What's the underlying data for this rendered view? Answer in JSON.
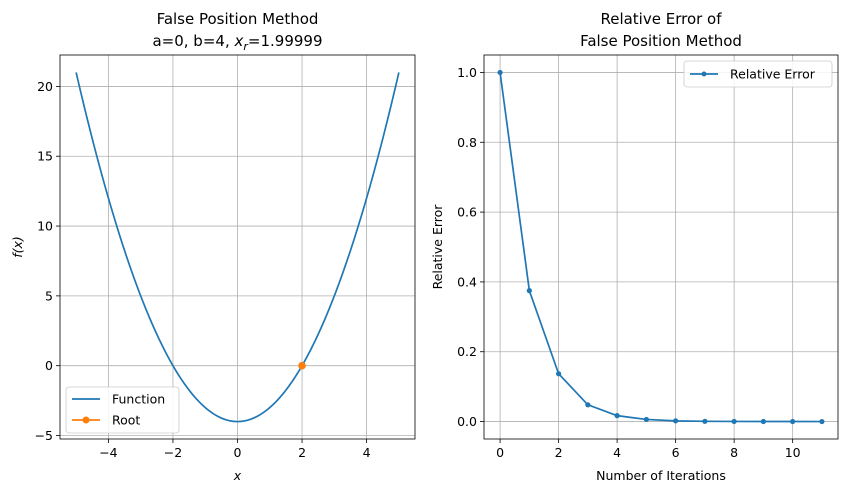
{
  "chart_data": [
    {
      "type": "line",
      "title_line1": "False Position Method",
      "title_line2_prefix": "a=0, b=4, ",
      "title_line2_var": "x",
      "title_line2_sub": "r",
      "title_line2_suffix": "=1.99999",
      "xlabel": "x",
      "ylabel": "f(x)",
      "xlim": [
        -5.5,
        5.5
      ],
      "ylim": [
        -5.25,
        22.25
      ],
      "xticks": [
        -4,
        -2,
        0,
        2,
        4
      ],
      "yticks": [
        -5,
        0,
        5,
        10,
        15,
        20
      ],
      "xtick_labels": [
        "−4",
        "−2",
        "0",
        "2",
        "4"
      ],
      "ytick_labels": [
        "−5",
        "0",
        "5",
        "10",
        "15",
        "20"
      ],
      "grid": true,
      "legend_position": "lower-left",
      "function": {
        "expression": "x^2 - 4",
        "x_range": [
          -5,
          5
        ],
        "color": "#1f77b4"
      },
      "root": {
        "x": 1.99999,
        "y": 0,
        "color": "#ff7f0e"
      },
      "series": [
        {
          "name": "Function",
          "color": "#1f77b4"
        },
        {
          "name": "Root",
          "color": "#ff7f0e"
        }
      ]
    },
    {
      "type": "line",
      "title_line1": "Relative Error of",
      "title_line2": "False Position Method",
      "xlabel": "Number of Iterations",
      "ylabel": "Relative Error",
      "xlim": [
        -0.55,
        11.55
      ],
      "ylim": [
        -0.05,
        1.05
      ],
      "xticks": [
        0,
        2,
        4,
        6,
        8,
        10
      ],
      "yticks": [
        0.0,
        0.2,
        0.4,
        0.6,
        0.8,
        1.0
      ],
      "xtick_labels": [
        "0",
        "2",
        "4",
        "6",
        "8",
        "10"
      ],
      "ytick_labels": [
        "0.0",
        "0.2",
        "0.4",
        "0.6",
        "0.8",
        "1.0"
      ],
      "grid": true,
      "legend_position": "upper-right",
      "series": [
        {
          "name": "Relative Error",
          "color": "#1f77b4",
          "x": [
            0,
            1,
            2,
            3,
            4,
            5,
            6,
            7,
            8,
            9,
            10,
            11
          ],
          "y": [
            1.0,
            0.375,
            0.137,
            0.048,
            0.017,
            0.006,
            0.002,
            0.0007,
            0.0003,
            0.0001,
            3e-05,
            1e-05
          ]
        }
      ]
    }
  ]
}
